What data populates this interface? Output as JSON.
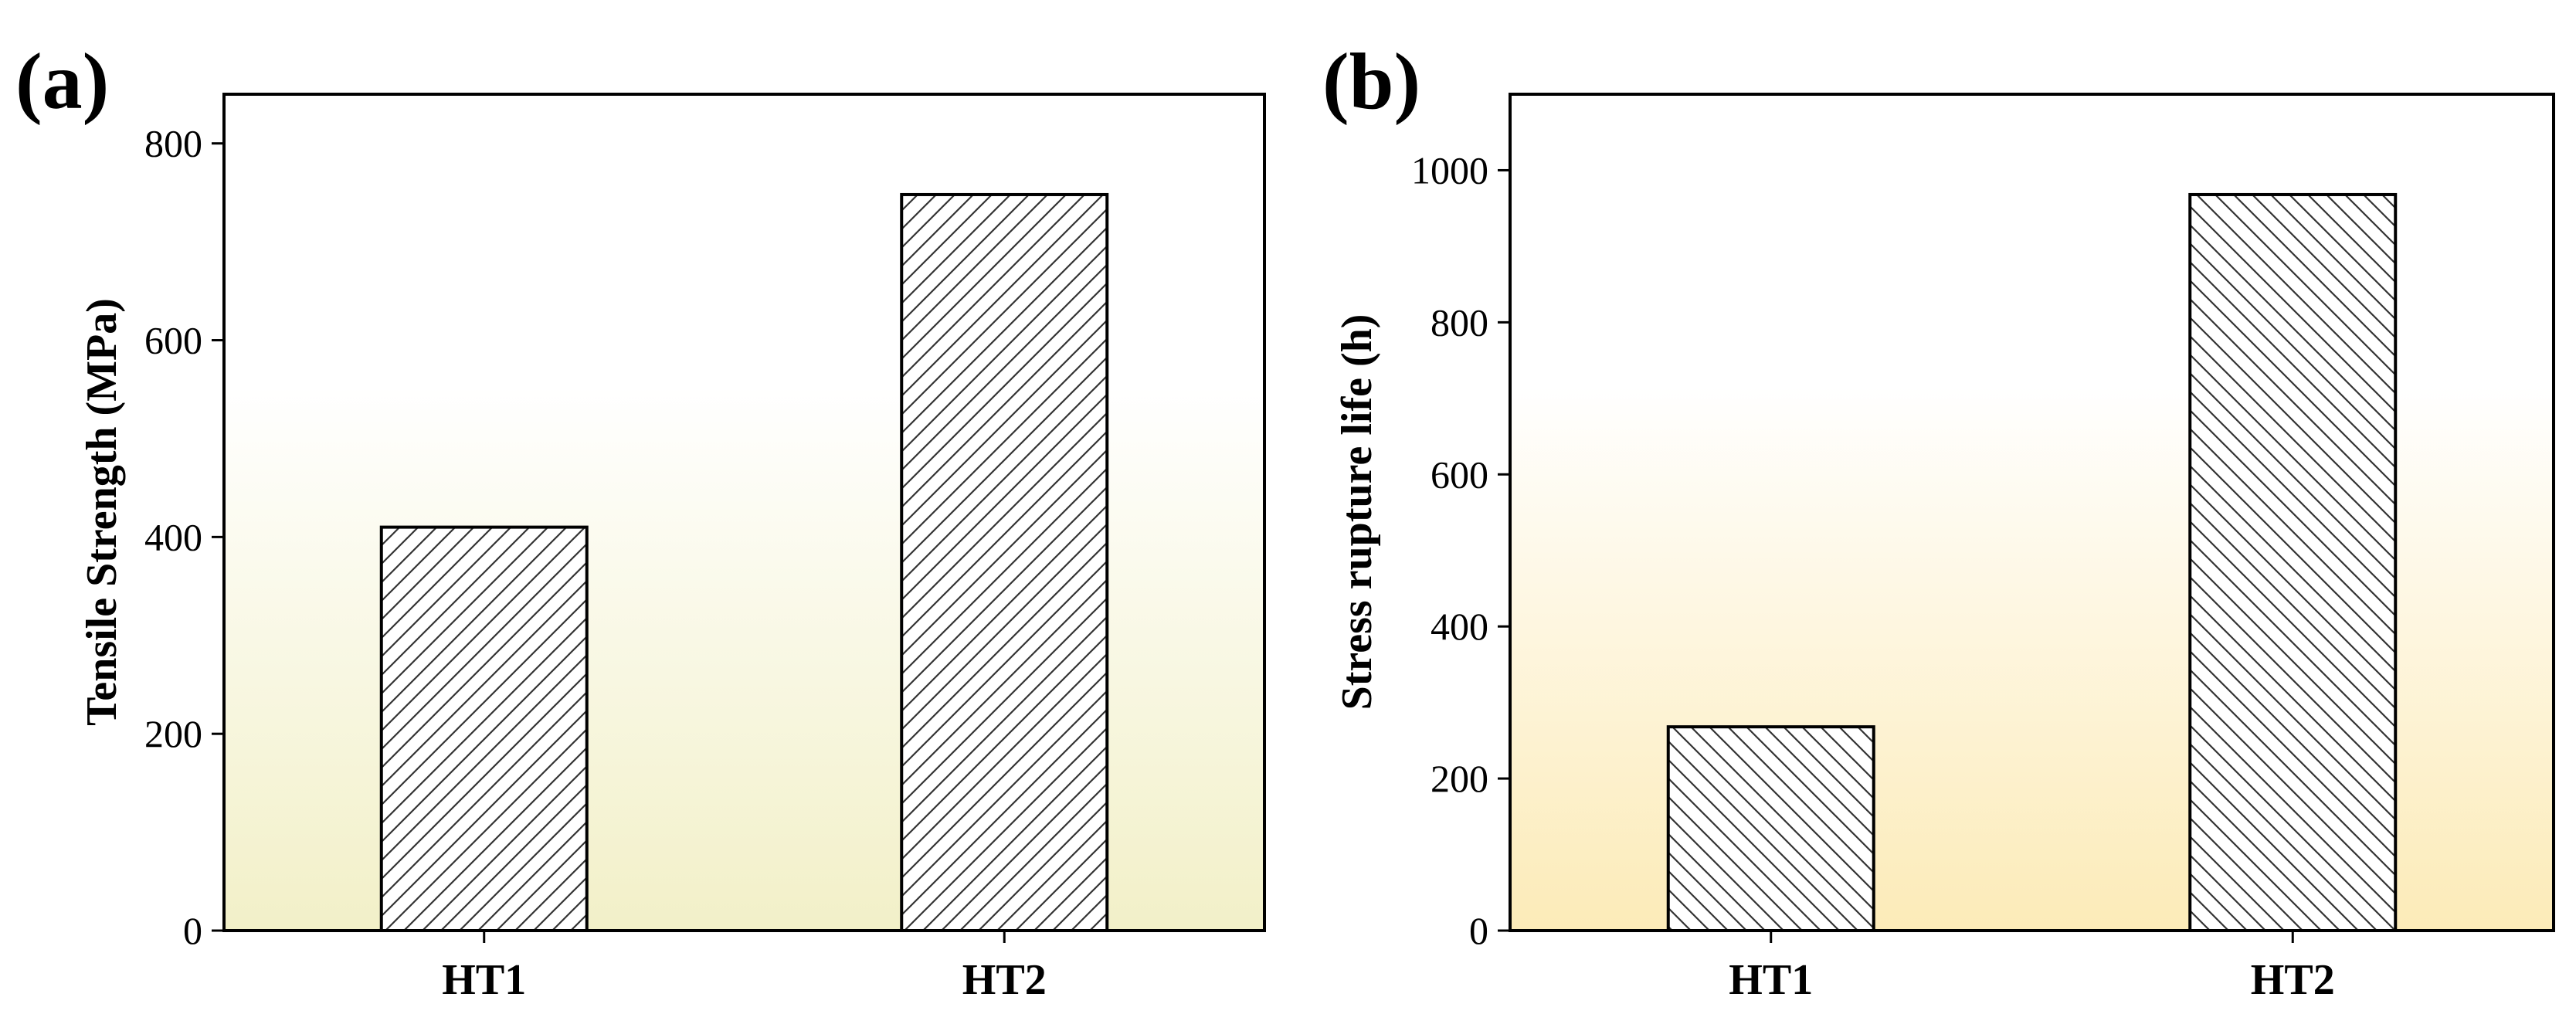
{
  "chart_data": [
    {
      "type": "bar",
      "panel_label": "(a)",
      "categories": [
        "HT1",
        "HT2"
      ],
      "values": [
        410,
        748
      ],
      "title": "",
      "xlabel": "",
      "ylabel": "Tensile Strength (MPa)",
      "ylim": [
        0,
        850
      ],
      "yticks": [
        "0",
        "200",
        "400",
        "600",
        "800"
      ],
      "ytick_values": [
        0,
        200,
        400,
        600,
        800
      ],
      "hatch": "forward-diagonal",
      "background_gradient": [
        "#ffffff",
        "#f2f0c8"
      ],
      "grid": false
    },
    {
      "type": "bar",
      "panel_label": "(b)",
      "categories": [
        "HT1",
        "HT2"
      ],
      "values": [
        268,
        968
      ],
      "title": "",
      "xlabel": "",
      "ylabel": "Stress rupture life (h)",
      "ylim": [
        0,
        1100
      ],
      "yticks": [
        "0",
        "200",
        "400",
        "600",
        "800",
        "1000"
      ],
      "ytick_values": [
        0,
        200,
        400,
        600,
        800,
        1000
      ],
      "hatch": "backward-diagonal",
      "background_gradient": [
        "#ffffff",
        "#fcebb8"
      ],
      "grid": false
    }
  ]
}
